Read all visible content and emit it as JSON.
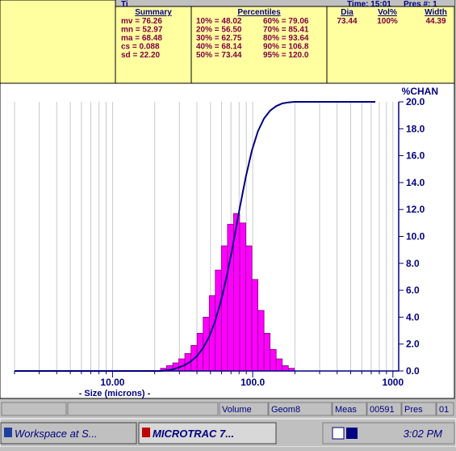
{
  "header": {
    "title": "Ti",
    "time": "Time: 15:01",
    "pres": "Pres #: 1"
  },
  "summary": {
    "heading": "Summary",
    "rows": [
      "mv  = 76.26",
      "mn  = 52.97",
      "ma  = 68.48",
      "cs  = 0.088",
      "sd  = 22.20"
    ]
  },
  "percentiles": {
    "heading": "Percentiles",
    "rows": [
      [
        "10% = 48.02",
        "60% = 79.06"
      ],
      [
        "20% = 56.50",
        "70% = 85.41"
      ],
      [
        "30% = 62.75",
        "80% = 93.64"
      ],
      [
        "40% = 68.14",
        "90% = 106.8"
      ],
      [
        "50% = 73.44",
        "95% = 120.0"
      ]
    ]
  },
  "peaks": {
    "headers": [
      "Dia",
      "Vol%",
      "Width"
    ],
    "row": [
      "73.44",
      "100%",
      "44.39"
    ]
  },
  "chart_data": [
    {
      "type": "histogram",
      "xlabel": "- Size (microns) -",
      "ylabel": "%CHAN",
      "log_x": true,
      "grid": "x",
      "color": "#ff00ff",
      "edge_color": "#800080",
      "bins": [
        22.0,
        24.3,
        26.9,
        29.7,
        32.8,
        36.3,
        40.1,
        44.3,
        49.0,
        54.1,
        59.8,
        66.1,
        73.0,
        80.7,
        89.2,
        98.6,
        108.9,
        120.4,
        133.0,
        147.0,
        162.4,
        179.5,
        198.3
      ],
      "values": [
        0.2,
        0.4,
        0.6,
        0.9,
        1.3,
        1.9,
        2.8,
        4.0,
        5.6,
        7.5,
        9.3,
        10.9,
        11.7,
        11.0,
        9.3,
        6.8,
        4.5,
        2.8,
        1.6,
        0.9,
        0.4,
        0.2
      ],
      "xlim": [
        2,
        1100
      ],
      "xticks": [
        {
          "value": 10,
          "label": "10.00"
        },
        {
          "value": 100,
          "label": "100.0"
        },
        1000
      ],
      "xminor": [
        2,
        3,
        4,
        5,
        6,
        7,
        8,
        9,
        20,
        30,
        40,
        50,
        60,
        70,
        80,
        90,
        200,
        300,
        400,
        500,
        600,
        700,
        800,
        900
      ],
      "ylim": [
        0,
        20
      ],
      "yticks": [
        {
          "value": 0,
          "label": "0.0"
        },
        {
          "value": 2,
          "label": "2.0"
        },
        {
          "value": 4,
          "label": "4.0"
        },
        {
          "value": 6,
          "label": "6.0"
        },
        {
          "value": 8,
          "label": "8.0"
        },
        {
          "value": 10,
          "label": "10.0"
        },
        {
          "value": 12,
          "label": "12.0"
        },
        {
          "value": 14,
          "label": "14.0"
        },
        {
          "value": 16,
          "label": "16.0"
        },
        {
          "value": 18,
          "label": "18.0"
        },
        {
          "value": 20,
          "label": "20.0"
        }
      ]
    },
    {
      "type": "line",
      "color": "#000080",
      "xlim": [
        2,
        1100
      ],
      "ylim": [
        0,
        100
      ],
      "x": [
        2,
        22.0,
        24.3,
        26.9,
        29.7,
        32.8,
        36.3,
        40.1,
        44.3,
        49.0,
        54.1,
        59.8,
        66.1,
        73.0,
        80.7,
        89.2,
        98.6,
        108.9,
        120.4,
        133.0,
        147.0,
        162.4,
        179.5,
        198.3,
        750
      ],
      "values": [
        0,
        0,
        0.2,
        0.6,
        1.3,
        2.2,
        3.6,
        5.6,
        8.6,
        12.8,
        18.7,
        26.6,
        36.5,
        48.0,
        60.4,
        72.0,
        81.8,
        89.0,
        93.8,
        96.7,
        98.4,
        99.4,
        99.8,
        100,
        100
      ]
    }
  ],
  "status_bar": [
    "Volume",
    "Geom8",
    "Meas",
    "00591",
    "Pres",
    "01"
  ],
  "taskbar": {
    "buttons": [
      "Workspace at S...",
      "MICROTRAC 7..."
    ],
    "clock": "3:02 PM"
  }
}
